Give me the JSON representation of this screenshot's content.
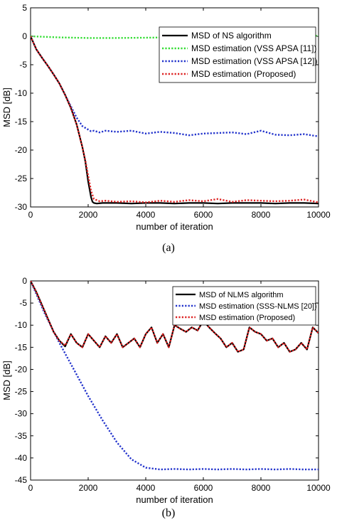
{
  "figure": {
    "captions": [
      "(a)",
      "(b)"
    ]
  },
  "chart_data": [
    {
      "type": "line",
      "panel": "(a)",
      "xlabel": "number of iteration",
      "ylabel": "MSD [dB]",
      "xlim": [
        0,
        10000
      ],
      "ylim": [
        -30,
        5
      ],
      "xticks": [
        0,
        2000,
        4000,
        6000,
        8000,
        10000
      ],
      "yticks": [
        5,
        0,
        -5,
        -10,
        -15,
        -20,
        -25,
        -30
      ],
      "grid": false,
      "legend_position": "top-right",
      "series": [
        {
          "name": "MSD of NS algorithm",
          "color": "#000000",
          "style": "solid",
          "x": [
            0,
            200,
            400,
            600,
            800,
            1000,
            1200,
            1400,
            1600,
            1800,
            1900,
            2000,
            2100,
            2150,
            2200,
            2300,
            2500,
            3000,
            3500,
            4000,
            4500,
            5000,
            5500,
            6000,
            6500,
            7000,
            7500,
            8000,
            8500,
            9000,
            9500,
            10000
          ],
          "y": [
            0,
            -2.3,
            -3.8,
            -5.2,
            -6.7,
            -8.3,
            -10.3,
            -12.6,
            -15.5,
            -19.5,
            -22,
            -25.5,
            -28.3,
            -29.1,
            -29.3,
            -29.4,
            -29.3,
            -29.3,
            -29.4,
            -29.3,
            -29.3,
            -29.4,
            -29.3,
            -29.3,
            -29.4,
            -29.3,
            -29.3,
            -29.3,
            -29.4,
            -29.3,
            -29.3,
            -29.4
          ]
        },
        {
          "name": "MSD estimation (VSS APSA [11])",
          "color": "#33dd33",
          "style": "dotted",
          "x": [
            0,
            1000,
            2000,
            3000,
            4000,
            5000,
            6000,
            7000,
            8000,
            9000,
            10000
          ],
          "y": [
            0,
            -0.2,
            -0.3,
            -0.3,
            -0.25,
            -0.2,
            -0.1,
            -0.05,
            0,
            0.05,
            0.1
          ]
        },
        {
          "name": "MSD estimation (VSS APSA [12])",
          "color": "#2233cc",
          "style": "dotted",
          "x": [
            0,
            200,
            400,
            600,
            800,
            1000,
            1200,
            1400,
            1600,
            1800,
            2000,
            2100,
            2200,
            2400,
            2600,
            3000,
            3500,
            4000,
            4500,
            5000,
            5500,
            6000,
            6500,
            7000,
            7500,
            8000,
            8500,
            9000,
            9500,
            10000
          ],
          "y": [
            0,
            -2.3,
            -3.8,
            -5.2,
            -6.7,
            -8.3,
            -10.3,
            -12.3,
            -14.3,
            -15.8,
            -16.4,
            -16.7,
            -16.6,
            -16.9,
            -16.6,
            -16.8,
            -16.6,
            -17.1,
            -16.8,
            -17.0,
            -17.4,
            -17.1,
            -17.0,
            -16.9,
            -17.2,
            -16.6,
            -17.3,
            -17.4,
            -17.2,
            -17.6
          ]
        },
        {
          "name": "MSD estimation (Proposed)",
          "color": "#dd2222",
          "style": "dotted",
          "x": [
            0,
            200,
            400,
            600,
            800,
            1000,
            1200,
            1400,
            1600,
            1800,
            1900,
            2000,
            2100,
            2200,
            2400,
            2600,
            3000,
            3500,
            4000,
            4500,
            5000,
            5500,
            6000,
            6500,
            7000,
            7500,
            8000,
            8500,
            9000,
            9500,
            10000
          ],
          "y": [
            0,
            -2.3,
            -3.8,
            -5.2,
            -6.7,
            -8.3,
            -10.3,
            -12.6,
            -15.5,
            -19.5,
            -21.8,
            -24.5,
            -27.2,
            -28.6,
            -29.0,
            -28.9,
            -29.1,
            -29.0,
            -29.2,
            -28.9,
            -29.1,
            -28.8,
            -29.0,
            -28.6,
            -29.1,
            -28.8,
            -28.9,
            -29.0,
            -28.9,
            -28.7,
            -29.2
          ]
        }
      ]
    },
    {
      "type": "line",
      "panel": "(b)",
      "xlabel": "number of iteration",
      "ylabel": "MSD [dB]",
      "xlim": [
        0,
        10000
      ],
      "ylim": [
        -45,
        0
      ],
      "xticks": [
        0,
        2000,
        4000,
        6000,
        8000,
        10000
      ],
      "yticks": [
        0,
        -5,
        -10,
        -15,
        -20,
        -25,
        -30,
        -35,
        -40,
        -45
      ],
      "grid": false,
      "legend_position": "top-right",
      "series": [
        {
          "name": "MSD of NLMS algorithm",
          "color": "#000000",
          "style": "solid",
          "x": [
            0,
            200,
            400,
            600,
            800,
            1000,
            1200,
            1400,
            1600,
            1800,
            2000,
            2200,
            2400,
            2600,
            2800,
            3000,
            3200,
            3400,
            3600,
            3800,
            4000,
            4200,
            4400,
            4600,
            4800,
            5000,
            5200,
            5400,
            5600,
            5800,
            6000,
            6200,
            6400,
            6600,
            6800,
            7000,
            7200,
            7400,
            7600,
            7800,
            8000,
            8200,
            8400,
            8600,
            8800,
            9000,
            9200,
            9400,
            9600,
            9800,
            10000
          ],
          "y": [
            0,
            -2.5,
            -5.5,
            -8.5,
            -11.5,
            -13.5,
            -14.8,
            -12,
            -14,
            -15,
            -12,
            -13.5,
            -15,
            -12.5,
            -14,
            -12,
            -15,
            -14,
            -13,
            -15,
            -12,
            -10.5,
            -14,
            -12,
            -15,
            -10,
            -10.8,
            -11.5,
            -10.5,
            -11.2,
            -9,
            -10.5,
            -11.8,
            -13,
            -15,
            -14,
            -16,
            -15.5,
            -10.5,
            -11.5,
            -12,
            -13.5,
            -13,
            -15,
            -14,
            -16,
            -15.5,
            -14,
            -15.5,
            -10.5,
            -11.8
          ]
        },
        {
          "name": "MSD estimation (SSS-NLMS [20])",
          "color": "#2233cc",
          "style": "dotted",
          "x": [
            0,
            500,
            1000,
            1500,
            2000,
            2500,
            3000,
            3500,
            4000,
            4500,
            5000,
            5500,
            6000,
            6500,
            7000,
            7500,
            8000,
            8500,
            9000,
            9500,
            10000
          ],
          "y": [
            0,
            -7.5,
            -14,
            -20,
            -26,
            -31.5,
            -36.5,
            -40.3,
            -42.2,
            -42.6,
            -42.5,
            -42.6,
            -42.5,
            -42.6,
            -42.5,
            -42.6,
            -42.5,
            -42.6,
            -42.5,
            -42.6,
            -42.6
          ]
        },
        {
          "name": "MSD estimation (Proposed)",
          "color": "#dd2222",
          "style": "dotted",
          "x": [
            0,
            200,
            400,
            600,
            800,
            1000,
            1200,
            1400,
            1600,
            1800,
            2000,
            2200,
            2400,
            2600,
            2800,
            3000,
            3200,
            3400,
            3600,
            3800,
            4000,
            4200,
            4400,
            4600,
            4800,
            5000,
            5200,
            5400,
            5600,
            5800,
            6000,
            6200,
            6400,
            6600,
            6800,
            7000,
            7200,
            7400,
            7600,
            7800,
            8000,
            8200,
            8400,
            8600,
            8800,
            9000,
            9200,
            9400,
            9600,
            9800,
            10000
          ],
          "y": [
            0,
            -2.5,
            -5.5,
            -8.5,
            -11.5,
            -13.5,
            -14.6,
            -12,
            -14,
            -15,
            -12,
            -13.5,
            -15,
            -12.5,
            -14,
            -12,
            -15,
            -14,
            -13,
            -15,
            -12,
            -10.5,
            -14,
            -12,
            -15,
            -10,
            -10.8,
            -11.5,
            -10.5,
            -11.2,
            -9,
            -10.5,
            -11.8,
            -13,
            -15,
            -14,
            -16,
            -15.5,
            -10.5,
            -11.5,
            -12,
            -13.5,
            -13,
            -15,
            -14,
            -16,
            -15.5,
            -14,
            -15.5,
            -10.5,
            -11.8
          ]
        }
      ]
    }
  ]
}
